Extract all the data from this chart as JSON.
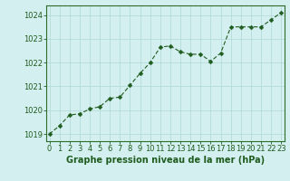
{
  "x": [
    0,
    1,
    2,
    3,
    4,
    5,
    6,
    7,
    8,
    9,
    10,
    11,
    12,
    13,
    14,
    15,
    16,
    17,
    18,
    19,
    20,
    21,
    22,
    23
  ],
  "y": [
    1019.0,
    1019.35,
    1019.8,
    1019.85,
    1020.05,
    1020.15,
    1020.5,
    1020.55,
    1021.05,
    1021.55,
    1022.0,
    1022.65,
    1022.7,
    1022.45,
    1022.35,
    1022.35,
    1022.05,
    1022.4,
    1023.5,
    1023.5,
    1023.5,
    1023.5,
    1023.8,
    1024.1
  ],
  "line_color": "#1f5c1f",
  "marker_size": 2.5,
  "bg_color": "#d4efef",
  "grid_color": "#aed8d8",
  "xlabel": "Graphe pression niveau de la mer (hPa)",
  "xlabel_color": "#1f5c1f",
  "xlabel_fontsize": 7.0,
  "tick_color": "#1f5c1f",
  "tick_fontsize": 6.0,
  "ylim": [
    1018.7,
    1024.4
  ],
  "xlim": [
    -0.3,
    23.3
  ],
  "yticks": [
    1019,
    1020,
    1021,
    1022,
    1023,
    1024
  ],
  "xticks": [
    0,
    1,
    2,
    3,
    4,
    5,
    6,
    7,
    8,
    9,
    10,
    11,
    12,
    13,
    14,
    15,
    16,
    17,
    18,
    19,
    20,
    21,
    22,
    23
  ],
  "spine_color": "#2d6e2d"
}
